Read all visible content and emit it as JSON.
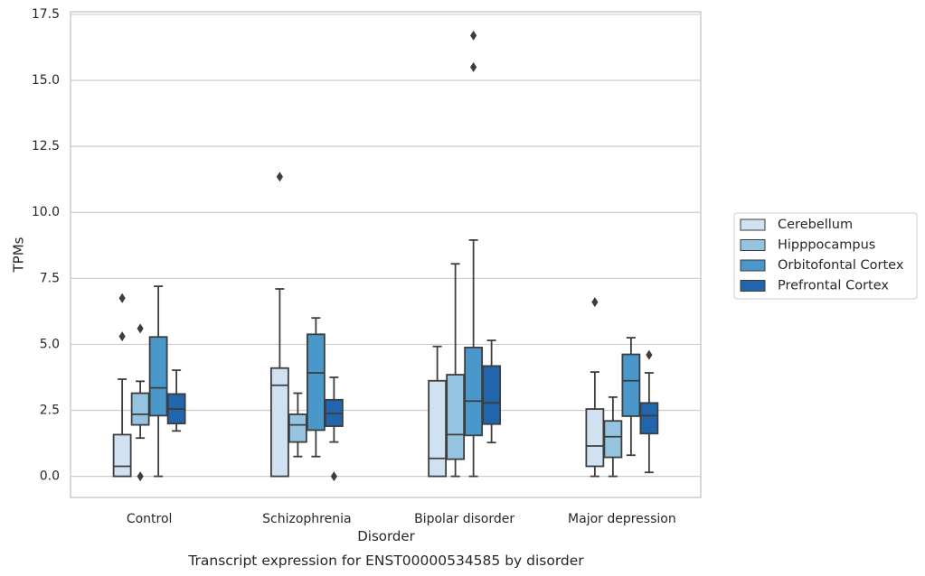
{
  "chart_data": {
    "type": "box",
    "title": "",
    "caption": "Transcript expression for ENST00000534585 by disorder",
    "xlabel": "Disorder",
    "ylabel": "TPMs",
    "ylim": [
      -0.8,
      17.6
    ],
    "yticks": [
      0.0,
      2.5,
      5.0,
      7.5,
      10.0,
      12.5,
      15.0,
      17.5
    ],
    "ytick_labels": [
      "0.0",
      "2.5",
      "5.0",
      "7.5",
      "10.0",
      "12.5",
      "15.0",
      "17.5"
    ],
    "grid": "horizontal",
    "legend_position": "right",
    "categories": [
      "Control",
      "Schizophrenia",
      "Bipolar disorder",
      "Major depression"
    ],
    "series": [
      {
        "name": "Cerebellum",
        "color": "#d0e1f2",
        "boxes": [
          {
            "whisker_low": 0.0,
            "q1": 0.0,
            "median": 0.38,
            "q3": 1.58,
            "whisker_high": 3.68,
            "outliers": [
              5.3,
              6.75
            ]
          },
          {
            "whisker_low": 0.0,
            "q1": 0.0,
            "median": 3.45,
            "q3": 4.1,
            "whisker_high": 7.1,
            "outliers": [
              11.35
            ]
          },
          {
            "whisker_low": 0.0,
            "q1": 0.0,
            "median": 0.68,
            "q3": 3.62,
            "whisker_high": 4.92,
            "outliers": []
          },
          {
            "whisker_low": 0.0,
            "q1": 0.38,
            "median": 1.15,
            "q3": 2.55,
            "whisker_high": 3.95,
            "outliers": [
              6.6
            ]
          }
        ]
      },
      {
        "name": "Hipppocampus",
        "color": "#94c4df",
        "boxes": [
          {
            "whisker_low": 1.45,
            "q1": 1.95,
            "median": 2.35,
            "q3": 3.15,
            "whisker_high": 3.6,
            "outliers": [
              0.0,
              5.6
            ]
          },
          {
            "whisker_low": 0.75,
            "q1": 1.3,
            "median": 1.95,
            "q3": 2.35,
            "whisker_high": 3.15,
            "outliers": []
          },
          {
            "whisker_low": 0.0,
            "q1": 0.65,
            "median": 1.58,
            "q3": 3.85,
            "whisker_high": 8.05,
            "outliers": []
          },
          {
            "whisker_low": 0.0,
            "q1": 0.72,
            "median": 1.5,
            "q3": 2.1,
            "whisker_high": 3.0,
            "outliers": []
          }
        ]
      },
      {
        "name": "Orbitofontal Cortex",
        "color": "#4a98c9",
        "boxes": [
          {
            "whisker_low": 0.0,
            "q1": 2.3,
            "median": 3.35,
            "q3": 5.28,
            "whisker_high": 7.2,
            "outliers": []
          },
          {
            "whisker_low": 0.75,
            "q1": 1.75,
            "median": 3.92,
            "q3": 5.38,
            "whisker_high": 6.0,
            "outliers": []
          },
          {
            "whisker_low": 0.0,
            "q1": 1.55,
            "median": 2.85,
            "q3": 4.88,
            "whisker_high": 8.95,
            "outliers": [
              15.5,
              16.7
            ]
          },
          {
            "whisker_low": 0.8,
            "q1": 2.28,
            "median": 3.62,
            "q3": 4.62,
            "whisker_high": 5.25,
            "outliers": []
          }
        ]
      },
      {
        "name": "Prefrontal Cortex",
        "color": "#2166ac",
        "boxes": [
          {
            "whisker_low": 1.72,
            "q1": 2.0,
            "median": 2.55,
            "q3": 3.12,
            "whisker_high": 4.02,
            "outliers": []
          },
          {
            "whisker_low": 1.3,
            "q1": 1.9,
            "median": 2.38,
            "q3": 2.9,
            "whisker_high": 3.75,
            "outliers": [
              0.0
            ]
          },
          {
            "whisker_low": 1.28,
            "q1": 1.98,
            "median": 2.78,
            "q3": 4.18,
            "whisker_high": 5.15,
            "outliers": []
          },
          {
            "whisker_low": 0.15,
            "q1": 1.62,
            "median": 2.3,
            "q3": 2.78,
            "whisker_high": 3.92,
            "outliers": [
              4.6
            ]
          }
        ]
      }
    ]
  }
}
